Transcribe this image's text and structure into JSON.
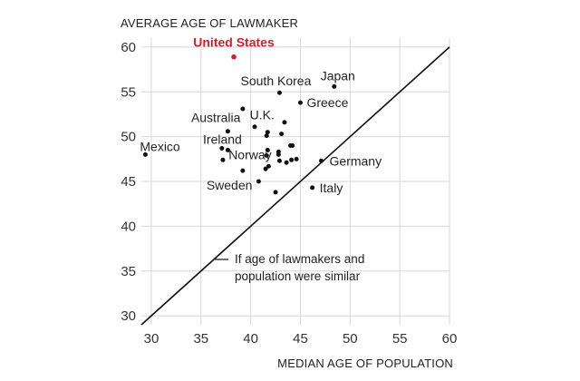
{
  "chart_data": {
    "type": "scatter",
    "title": "",
    "xlabel": "MEDIAN AGE OF POPULATION",
    "ylabel": "AVERAGE AGE OF LAWMAKER",
    "xlim": [
      29,
      60
    ],
    "ylim": [
      29,
      61
    ],
    "xticks": [
      "30",
      "35",
      "40",
      "45",
      "50",
      "55",
      "60"
    ],
    "yticks": [
      "30",
      "35",
      "40",
      "45",
      "50",
      "55",
      "60"
    ],
    "grid": true,
    "highlight_color": "#d0202e",
    "point_color": "#111111",
    "points": [
      {
        "x": 38.3,
        "y": 58.9,
        "label": "United States",
        "highlight": true
      },
      {
        "x": 48.4,
        "y": 55.6,
        "label": "Japan"
      },
      {
        "x": 42.9,
        "y": 54.9,
        "label": "South Korea"
      },
      {
        "x": 45.0,
        "y": 53.8,
        "label": "Greece"
      },
      {
        "x": 37.7,
        "y": 50.6,
        "label": "Australia"
      },
      {
        "x": 41.7,
        "y": 50.5,
        "label": "U.K."
      },
      {
        "x": 37.1,
        "y": 48.7,
        "label": "Ireland"
      },
      {
        "x": 29.4,
        "y": 48.0,
        "label": "Mexico"
      },
      {
        "x": 41.6,
        "y": 47.9,
        "label": "Norway"
      },
      {
        "x": 47.1,
        "y": 47.3,
        "label": "Germany"
      },
      {
        "x": 40.8,
        "y": 45.0,
        "label": "Sweden"
      },
      {
        "x": 46.2,
        "y": 44.3,
        "label": "Italy"
      },
      {
        "x": 39.2,
        "y": 53.1
      },
      {
        "x": 40.4,
        "y": 51.1
      },
      {
        "x": 43.4,
        "y": 51.6
      },
      {
        "x": 41.6,
        "y": 50.1
      },
      {
        "x": 43.1,
        "y": 50.3
      },
      {
        "x": 44.0,
        "y": 49.0
      },
      {
        "x": 44.2,
        "y": 49.0
      },
      {
        "x": 37.7,
        "y": 48.5
      },
      {
        "x": 41.7,
        "y": 48.5
      },
      {
        "x": 42.8,
        "y": 48.3
      },
      {
        "x": 42.8,
        "y": 48.0
      },
      {
        "x": 37.2,
        "y": 47.4
      },
      {
        "x": 43.6,
        "y": 47.1
      },
      {
        "x": 44.1,
        "y": 47.4
      },
      {
        "x": 44.6,
        "y": 47.5
      },
      {
        "x": 42.9,
        "y": 47.3
      },
      {
        "x": 41.8,
        "y": 46.7
      },
      {
        "x": 39.2,
        "y": 46.2
      },
      {
        "x": 41.5,
        "y": 46.4
      },
      {
        "x": 42.5,
        "y": 43.8
      }
    ],
    "reference_line": {
      "from": [
        29,
        29
      ],
      "to": [
        60,
        60
      ]
    },
    "annotation": [
      "If age of lawmakers and",
      "population were similar"
    ]
  }
}
